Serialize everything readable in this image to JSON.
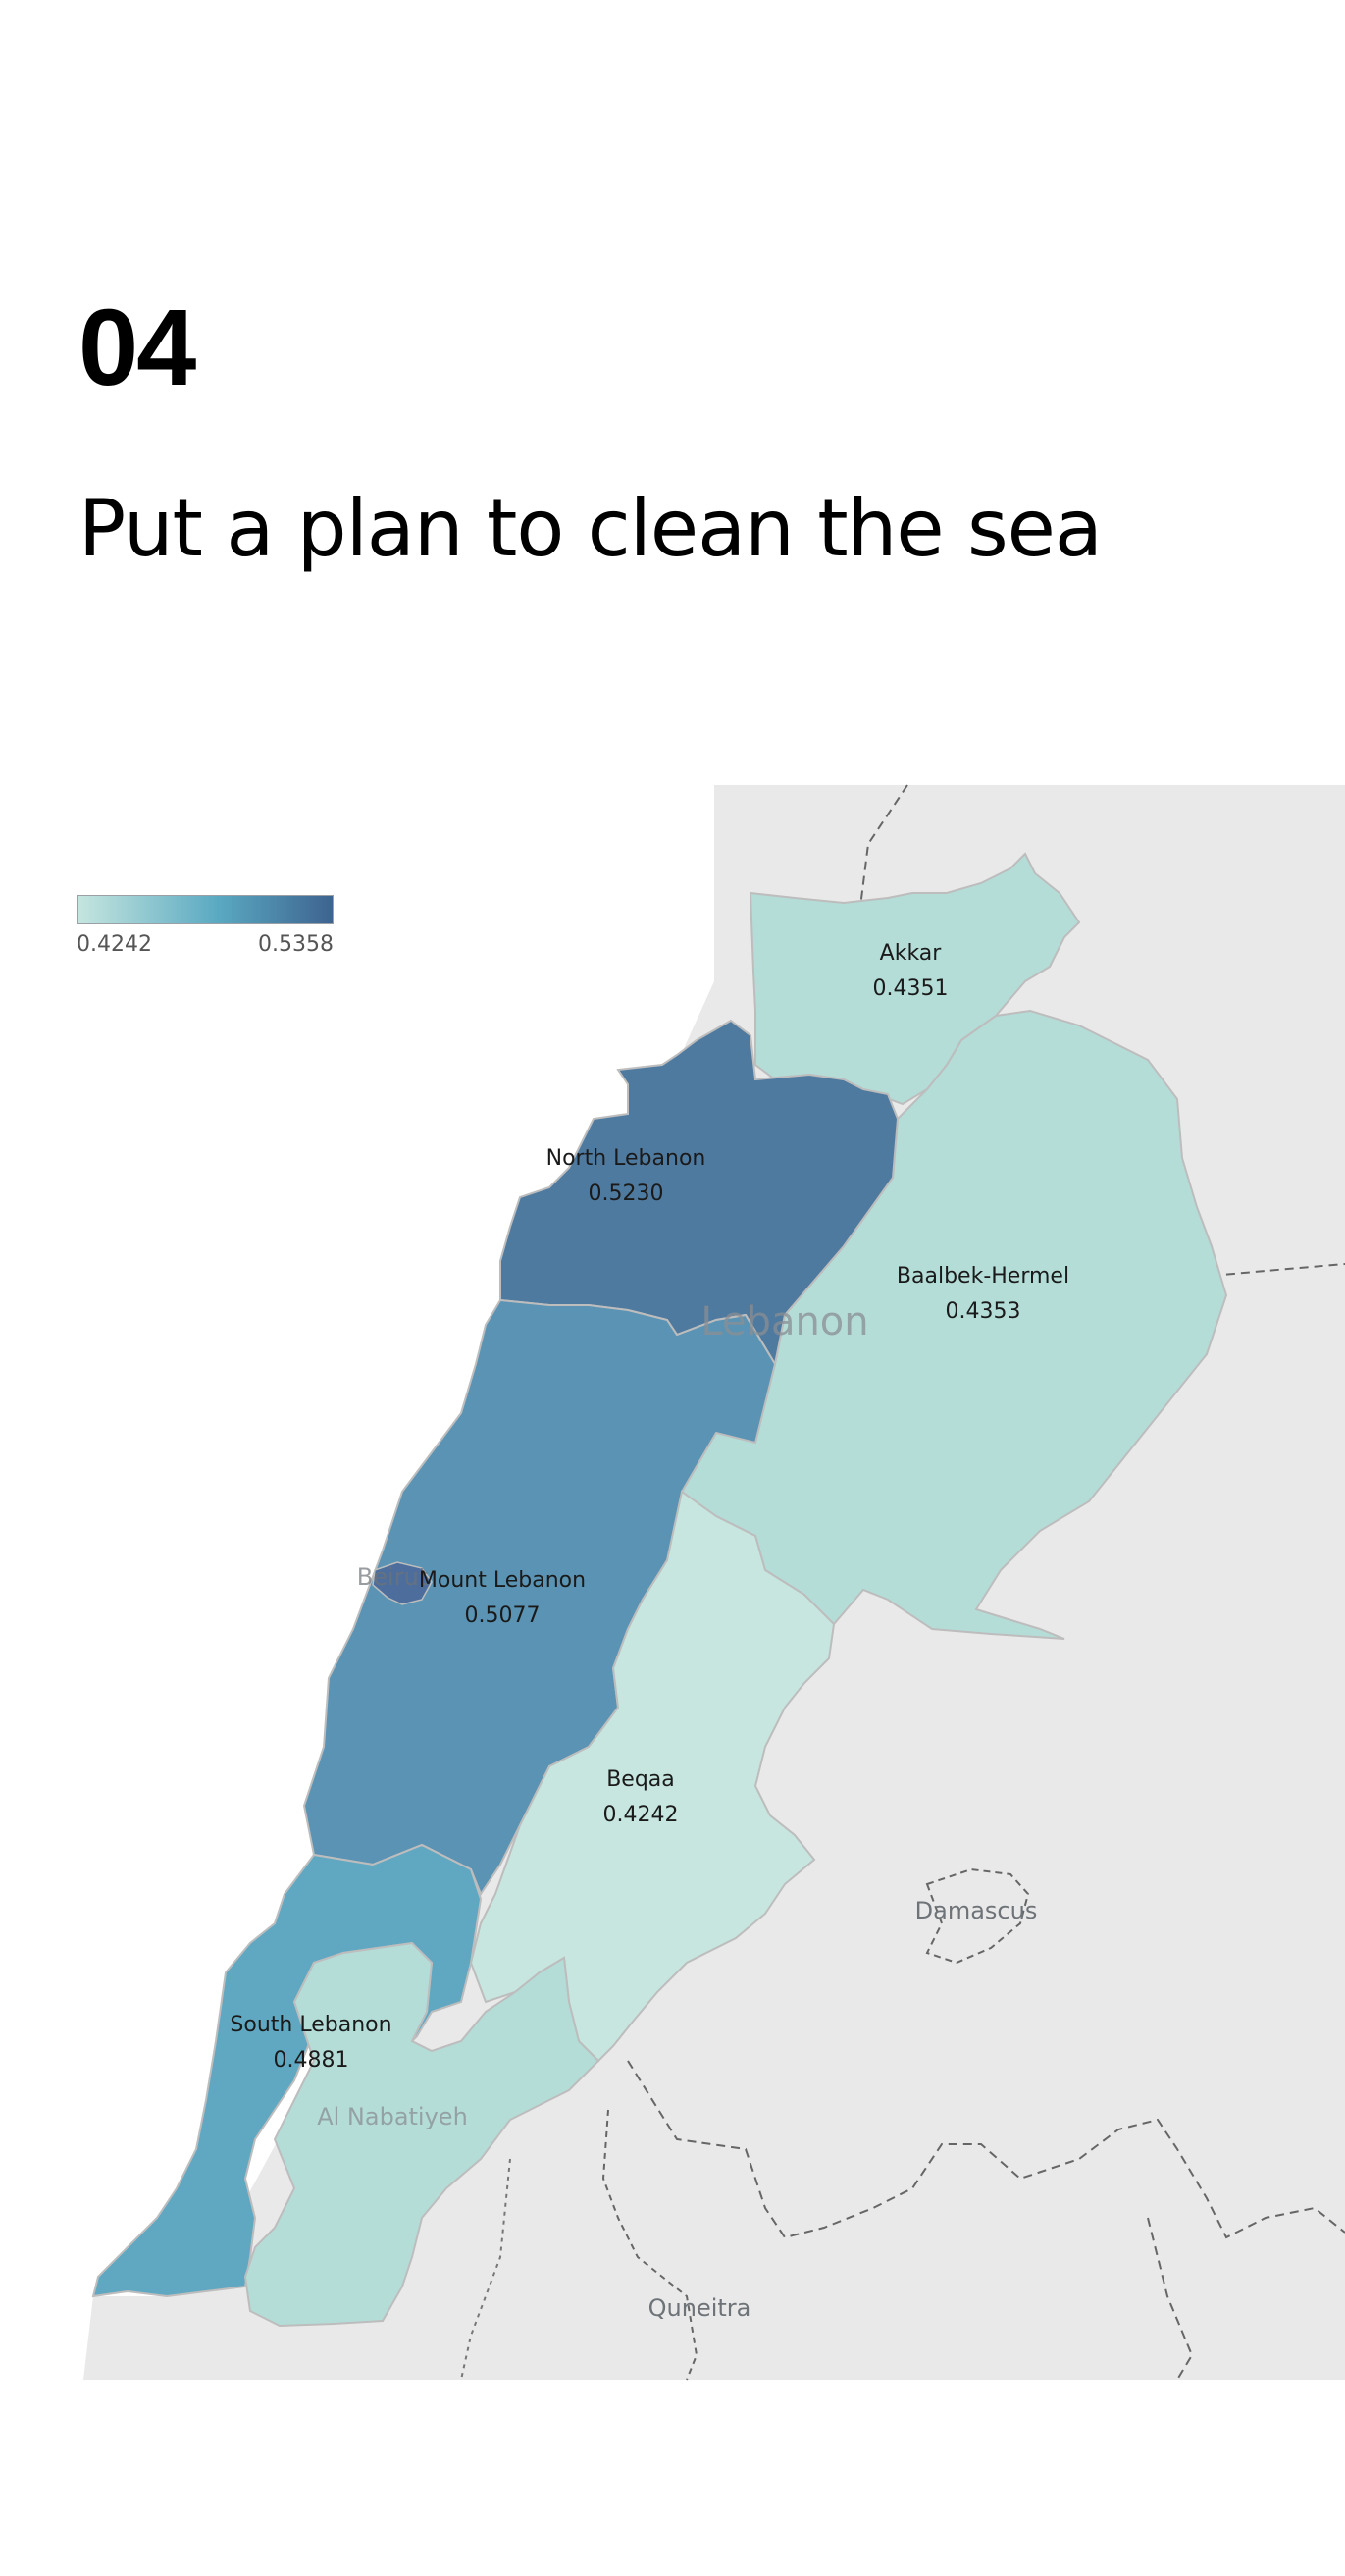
{
  "page": {
    "number": "04",
    "title": "Put a plan to clean the sea"
  },
  "legend": {
    "min_label": "0.4242",
    "max_label": "0.5358",
    "color_low": "#c6e6df",
    "color_high": "#3e638f"
  },
  "map": {
    "country_label": "Lebanon",
    "basemap_places": [
      "Beirut",
      "Damascus",
      "Quneitra",
      "Al Nabatiyeh"
    ],
    "regions": [
      {
        "name": "Akkar",
        "value": "0.4351",
        "color": "#b4ddd8"
      },
      {
        "name": "North Lebanon",
        "value": "0.5230",
        "color": "#4f7a9f"
      },
      {
        "name": "Baalbek-Hermel",
        "value": "0.4353",
        "color": "#b4ddd8"
      },
      {
        "name": "Mount Lebanon",
        "value": "0.5077",
        "color": "#5a93b3"
      },
      {
        "name": "Beqaa",
        "value": "0.4242",
        "color": "#c6e6df"
      },
      {
        "name": "South Lebanon",
        "value": "0.4881",
        "color": "#60a8c2"
      },
      {
        "name": "Nabatieh",
        "value": "",
        "color": "#b4ddd8"
      },
      {
        "name": "Beirut",
        "value": "",
        "color": "#4d6e9c"
      }
    ]
  }
}
